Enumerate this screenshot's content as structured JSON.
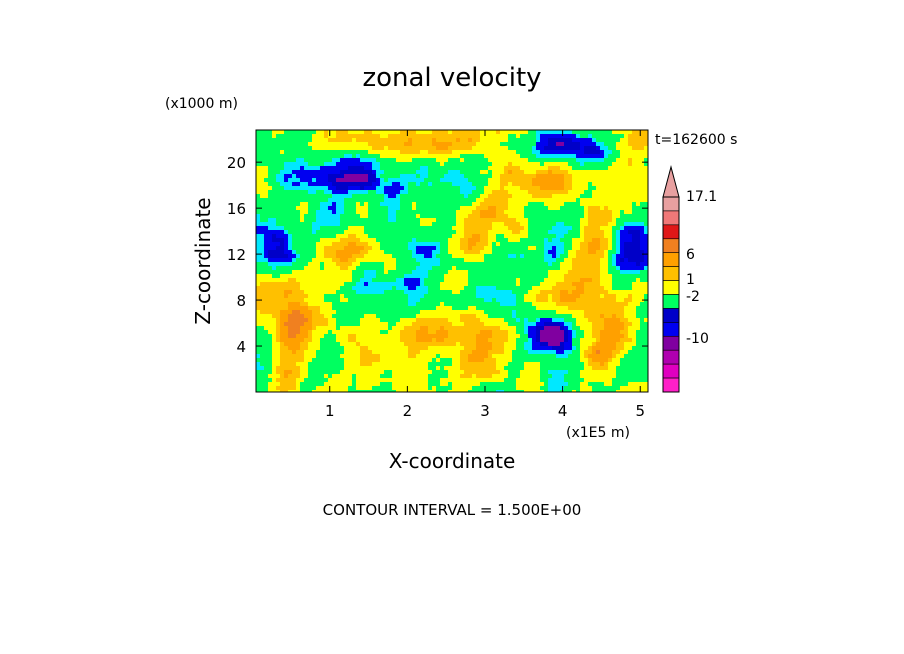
{
  "chart_data": {
    "type": "heatmap",
    "title": "zonal velocity",
    "xlabel": "X-coordinate",
    "ylabel": "Z-coordinate",
    "x_unit": "(x1E5 m)",
    "y_unit": "(x1000 m)",
    "time_label": "t=162600 s",
    "footer": "CONTOUR INTERVAL = 1.500E+00",
    "xlim": [
      0.05,
      5.1
    ],
    "ylim": [
      0,
      22.8
    ],
    "x_ticks": [
      1,
      2,
      3,
      4,
      5
    ],
    "y_ticks": [
      4,
      8,
      12,
      16,
      20
    ],
    "colorbar": {
      "labels": [
        "17.1",
        "6",
        "1",
        "-2",
        "-10"
      ],
      "colors": [
        "#e8a0a0",
        "#f07878",
        "#e01818",
        "#f08020",
        "#ffa000",
        "#ffc000",
        "#ffff00",
        "#00ff60",
        "#0000c8",
        "#0000f0",
        "#8000a0",
        "#b000b0",
        "#e000c0",
        "#ff20c8"
      ],
      "extend_max": true
    }
  }
}
